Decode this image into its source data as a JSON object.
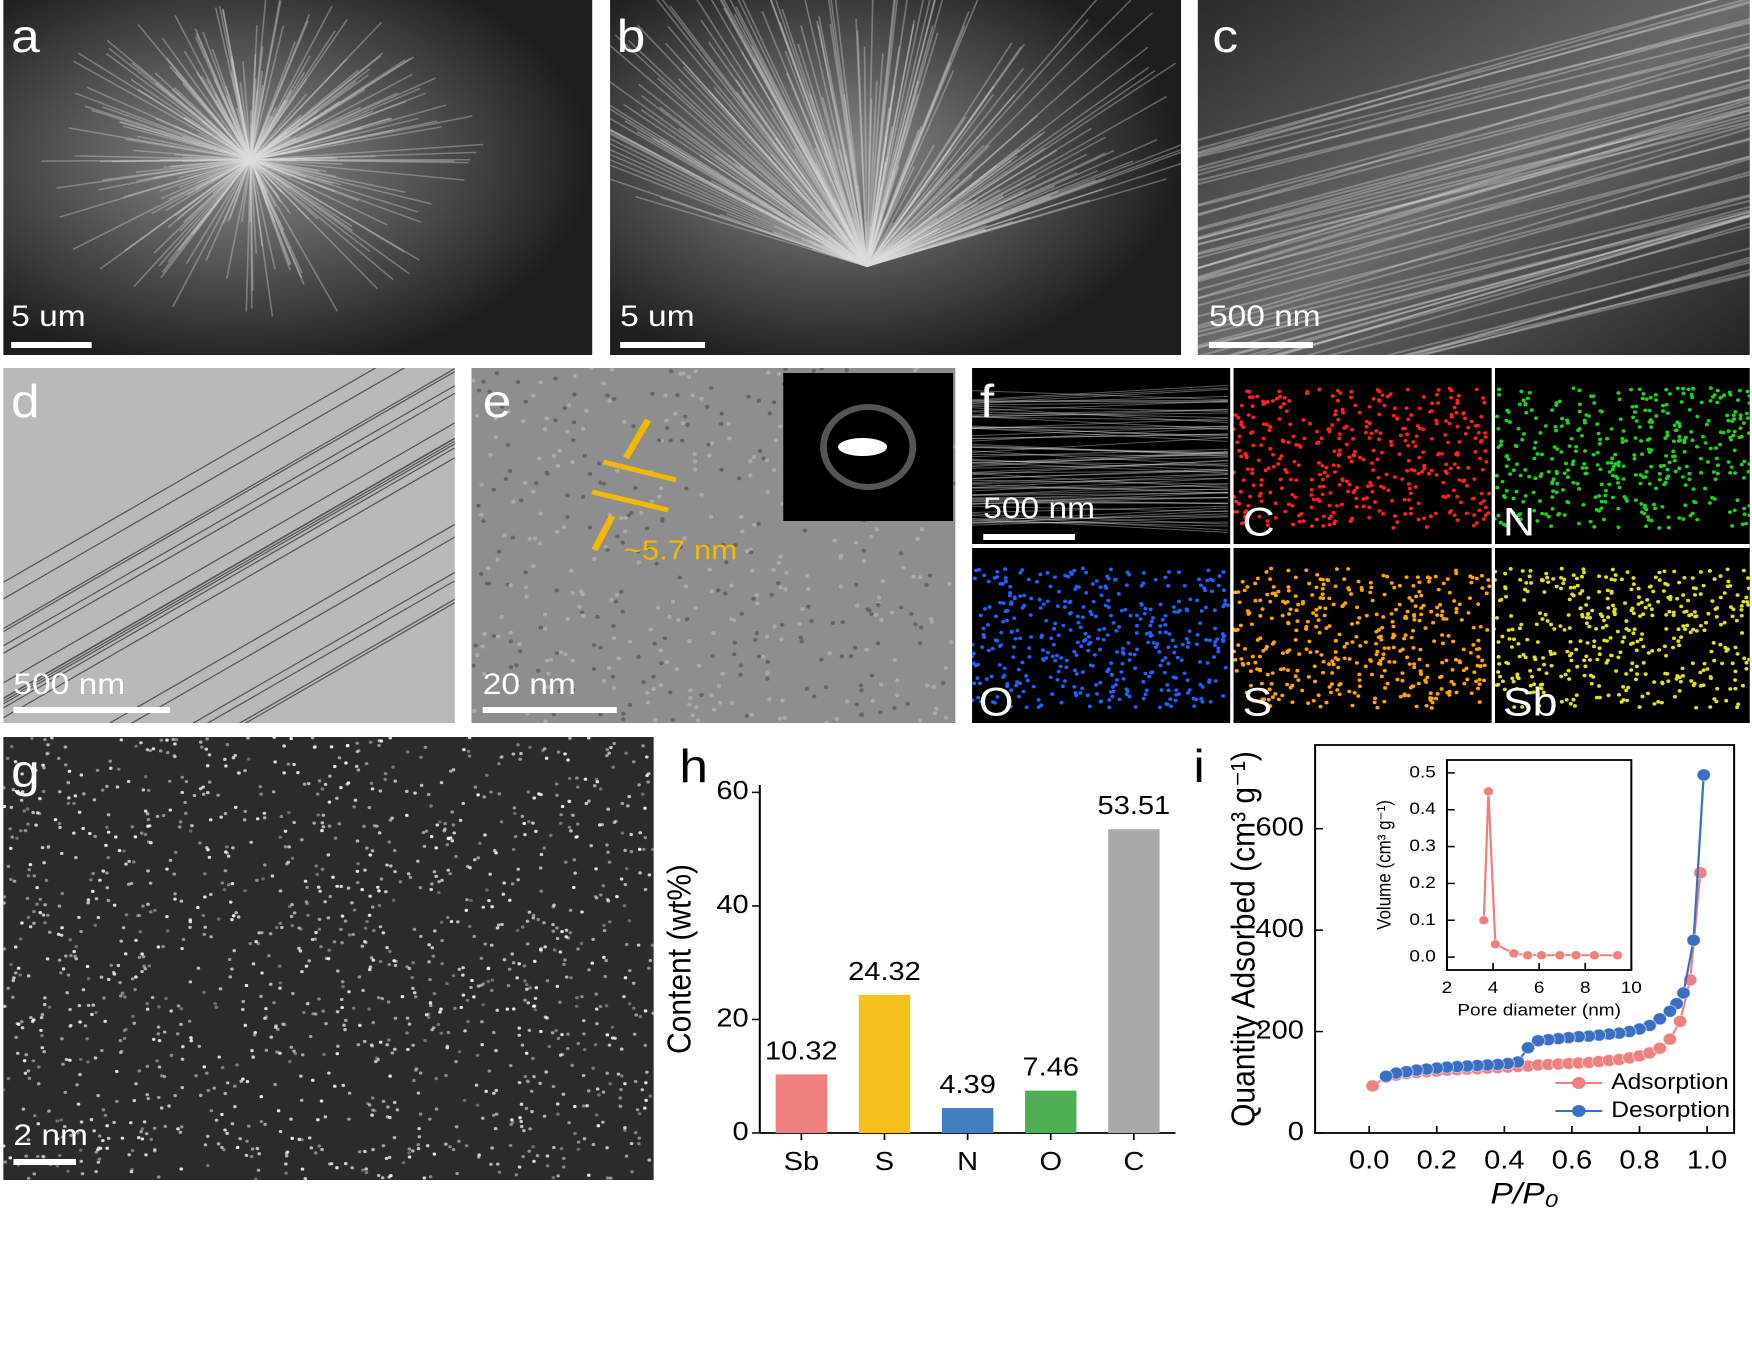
{
  "figure": {
    "panels": [
      {
        "label": "a",
        "scale_bar": "5 um"
      },
      {
        "label": "b",
        "scale_bar": "5 um"
      },
      {
        "label": "c",
        "scale_bar": "500 nm"
      },
      {
        "label": "d",
        "scale_bar": "500 nm"
      },
      {
        "label": "e",
        "scale_bar": "20 nm",
        "annotation": "~5.7 nm"
      },
      {
        "label": "f",
        "scale_bar": "500 nm",
        "maps": [
          "C",
          "N",
          "O",
          "S",
          "Sb"
        ]
      },
      {
        "label": "g",
        "scale_bar": "2 nm"
      },
      {
        "label": "h"
      },
      {
        "label": "i"
      }
    ]
  },
  "chart_data": [
    {
      "type": "bar",
      "ylabel": "Content (wt%)",
      "categories": [
        "Sb",
        "S",
        "N",
        "O",
        "C"
      ],
      "values": [
        10.32,
        24.32,
        4.39,
        7.46,
        53.51
      ],
      "colors": [
        "#f08080",
        "#f5c01a",
        "#3f7fc0",
        "#4caf50",
        "#a9a9a9"
      ],
      "ylim": [
        0,
        61.3
      ],
      "yticks": [
        0,
        20,
        40,
        60
      ]
    },
    {
      "type": "line",
      "ylabel": "Quantity Adsorbed (cm³ g⁻¹)",
      "xlabel": "P/P₀",
      "xlim": [
        -0.16,
        1.08
      ],
      "xticks": [
        {
          "value": 0,
          "label": "0.0"
        },
        0.2,
        0.4,
        0.6,
        0.8,
        {
          "value": 1,
          "label": "1.0"
        }
      ],
      "ylim": [
        0,
        765
      ],
      "yticks": [
        0,
        200,
        400,
        600
      ],
      "legend": "lower right",
      "series": [
        {
          "name": "Adsorption",
          "color": "#f08080",
          "x": [
            0.01,
            0.05,
            0.08,
            0.11,
            0.14,
            0.17,
            0.2,
            0.23,
            0.26,
            0.29,
            0.32,
            0.35,
            0.38,
            0.41,
            0.44,
            0.47,
            0.5,
            0.53,
            0.56,
            0.59,
            0.62,
            0.65,
            0.68,
            0.71,
            0.74,
            0.77,
            0.8,
            0.83,
            0.86,
            0.89,
            0.92,
            0.95,
            0.98
          ],
          "values": [
            93,
            110,
            114,
            117,
            119,
            121,
            122,
            124,
            125,
            126,
            127,
            128,
            129,
            130,
            131,
            132,
            134,
            135,
            136,
            137,
            138,
            139,
            141,
            143,
            145,
            148,
            152,
            158,
            167,
            185,
            220,
            302,
            513
          ]
        },
        {
          "name": "Desorption",
          "color": "#3a6fc4",
          "x": [
            0.99,
            0.96,
            0.93,
            0.91,
            0.89,
            0.86,
            0.83,
            0.8,
            0.77,
            0.74,
            0.71,
            0.68,
            0.65,
            0.62,
            0.59,
            0.56,
            0.53,
            0.5,
            0.47,
            0.44,
            0.41,
            0.38,
            0.35,
            0.32,
            0.29,
            0.26,
            0.23,
            0.2,
            0.17,
            0.14,
            0.11,
            0.08,
            0.05
          ],
          "values": [
            706,
            380,
            276,
            255,
            240,
            225,
            212,
            205,
            200,
            197,
            195,
            193,
            191,
            190,
            188,
            186,
            184,
            182,
            168,
            140,
            137,
            135,
            134,
            133,
            132,
            131,
            130,
            128,
            126,
            124,
            121,
            118,
            112
          ]
        }
      ]
    },
    {
      "type": "line",
      "ylabel": "Volume (cm³ g⁻¹)",
      "xlabel": "Pore diameter (nm)",
      "xlim": [
        2,
        10
      ],
      "xticks": [
        2,
        4,
        6,
        8,
        10
      ],
      "ylim": [
        -0.035,
        0.535
      ],
      "yticks": [
        {
          "value": 0,
          "label": "0.0"
        },
        0.1,
        0.2,
        0.3,
        0.4,
        0.5
      ],
      "series": [
        {
          "color": "#f08080",
          "x": [
            3.6,
            3.8,
            4.1,
            4.9,
            5.5,
            6.1,
            6.9,
            7.6,
            8.4,
            9.4
          ],
          "values": [
            0.1,
            0.45,
            0.035,
            0.01,
            0.005,
            0.005,
            0.005,
            0.005,
            0.005,
            0.005
          ]
        }
      ]
    }
  ]
}
